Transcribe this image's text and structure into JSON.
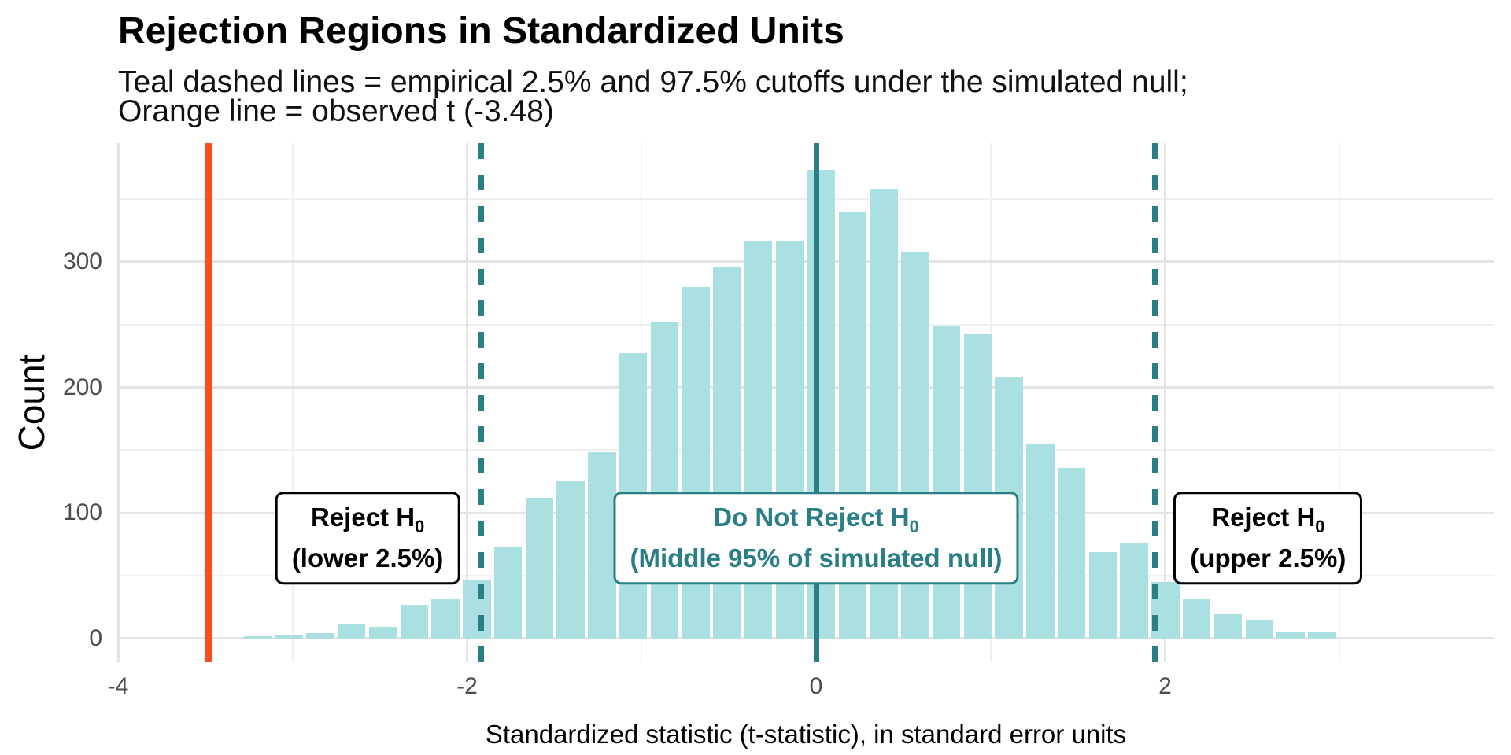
{
  "header": {
    "title": "Rejection Regions in Standardized Units",
    "subtitle_line1": "Teal dashed lines = empirical 2.5% and 97.5% cutoffs under the simulated null;",
    "subtitle_line2": "Orange line = observed t (-3.48)"
  },
  "chart_data": {
    "type": "bar",
    "subtype": "histogram",
    "title": "Rejection Regions in Standardized Units",
    "xlabel": "Standardized statistic (t-statistic), in standard error units",
    "ylabel": "Count",
    "xlim": [
      -4.0,
      3.88
    ],
    "ylim": [
      0,
      393
    ],
    "x_major_ticks": [
      {
        "v": -4,
        "label": "-4"
      },
      {
        "v": -2,
        "label": "-2"
      },
      {
        "v": 0,
        "label": "0"
      },
      {
        "v": 2,
        "label": "2"
      }
    ],
    "x_minor_ticks": [
      -3,
      -1,
      1,
      3
    ],
    "y_major_ticks": [
      {
        "v": 0,
        "label": "0"
      },
      {
        "v": 100,
        "label": "100"
      },
      {
        "v": 200,
        "label": "200"
      },
      {
        "v": 300,
        "label": "300"
      }
    ],
    "y_minor_ticks": [
      50,
      150,
      250,
      350
    ],
    "grid": true,
    "legend": "none",
    "binwidth": 0.1794,
    "bins": [
      {
        "x": -3.29,
        "count": 2
      },
      {
        "x": -3.111,
        "count": 3
      },
      {
        "x": -2.931,
        "count": 4
      },
      {
        "x": -2.752,
        "count": 11
      },
      {
        "x": -2.572,
        "count": 9
      },
      {
        "x": -2.393,
        "count": 27
      },
      {
        "x": -2.214,
        "count": 31
      },
      {
        "x": -2.034,
        "count": 47
      },
      {
        "x": -1.855,
        "count": 73
      },
      {
        "x": -1.675,
        "count": 112
      },
      {
        "x": -1.496,
        "count": 125
      },
      {
        "x": -1.317,
        "count": 148
      },
      {
        "x": -1.137,
        "count": 227
      },
      {
        "x": -0.958,
        "count": 252
      },
      {
        "x": -0.778,
        "count": 280
      },
      {
        "x": -0.599,
        "count": 296
      },
      {
        "x": -0.42,
        "count": 317
      },
      {
        "x": -0.24,
        "count": 317
      },
      {
        "x": -0.061,
        "count": 373
      },
      {
        "x": 0.119,
        "count": 340
      },
      {
        "x": 0.298,
        "count": 358
      },
      {
        "x": 0.477,
        "count": 308
      },
      {
        "x": 0.657,
        "count": 249
      },
      {
        "x": 0.836,
        "count": 242
      },
      {
        "x": 1.016,
        "count": 208
      },
      {
        "x": 1.195,
        "count": 155
      },
      {
        "x": 1.374,
        "count": 136
      },
      {
        "x": 1.554,
        "count": 69
      },
      {
        "x": 1.733,
        "count": 76
      },
      {
        "x": 1.913,
        "count": 45
      },
      {
        "x": 2.092,
        "count": 31
      },
      {
        "x": 2.271,
        "count": 19
      },
      {
        "x": 2.451,
        "count": 15
      },
      {
        "x": 2.63,
        "count": 5
      },
      {
        "x": 2.81,
        "count": 5
      }
    ],
    "vlines": [
      {
        "name": "observed-t-line",
        "x": -3.48,
        "style": "solid",
        "color": "#fb4d1e",
        "width": 9
      },
      {
        "name": "lower-cutoff-line",
        "x": -1.92,
        "style": "dashed",
        "color": "#2a7e86",
        "width": 7
      },
      {
        "name": "null-center-line",
        "x": 0,
        "style": "solid",
        "color": "#2a7e86",
        "width": 7
      },
      {
        "name": "upper-cutoff-line",
        "x": 1.94,
        "style": "dashed",
        "color": "#2a7e86",
        "width": 7
      }
    ],
    "annotations": [
      {
        "name": "reject-lower-label",
        "x": -2.57,
        "y": 80,
        "line1_main": "Reject H",
        "line1_sub": "0",
        "line2": "(lower 2.5%)",
        "color": "#000000"
      },
      {
        "name": "do-not-reject-label",
        "x": 0.0,
        "y": 80,
        "line1_main": "Do Not Reject H",
        "line1_sub": "0",
        "line2": "(Middle 95% of simulated null)",
        "color": "#2a7e86"
      },
      {
        "name": "reject-upper-label",
        "x": 2.59,
        "y": 80,
        "line1_main": "Reject H",
        "line1_sub": "0",
        "line2": "(upper 2.5%)",
        "color": "#000000"
      }
    ],
    "colors": {
      "bar_fill": "#abe0e2",
      "teal_line": "#2a7e86",
      "orange_line": "#fb4d1e",
      "grid_major": "#e4e4e4",
      "grid_minor": "#f0f0f0",
      "tick_text": "#4d4d4d"
    }
  }
}
